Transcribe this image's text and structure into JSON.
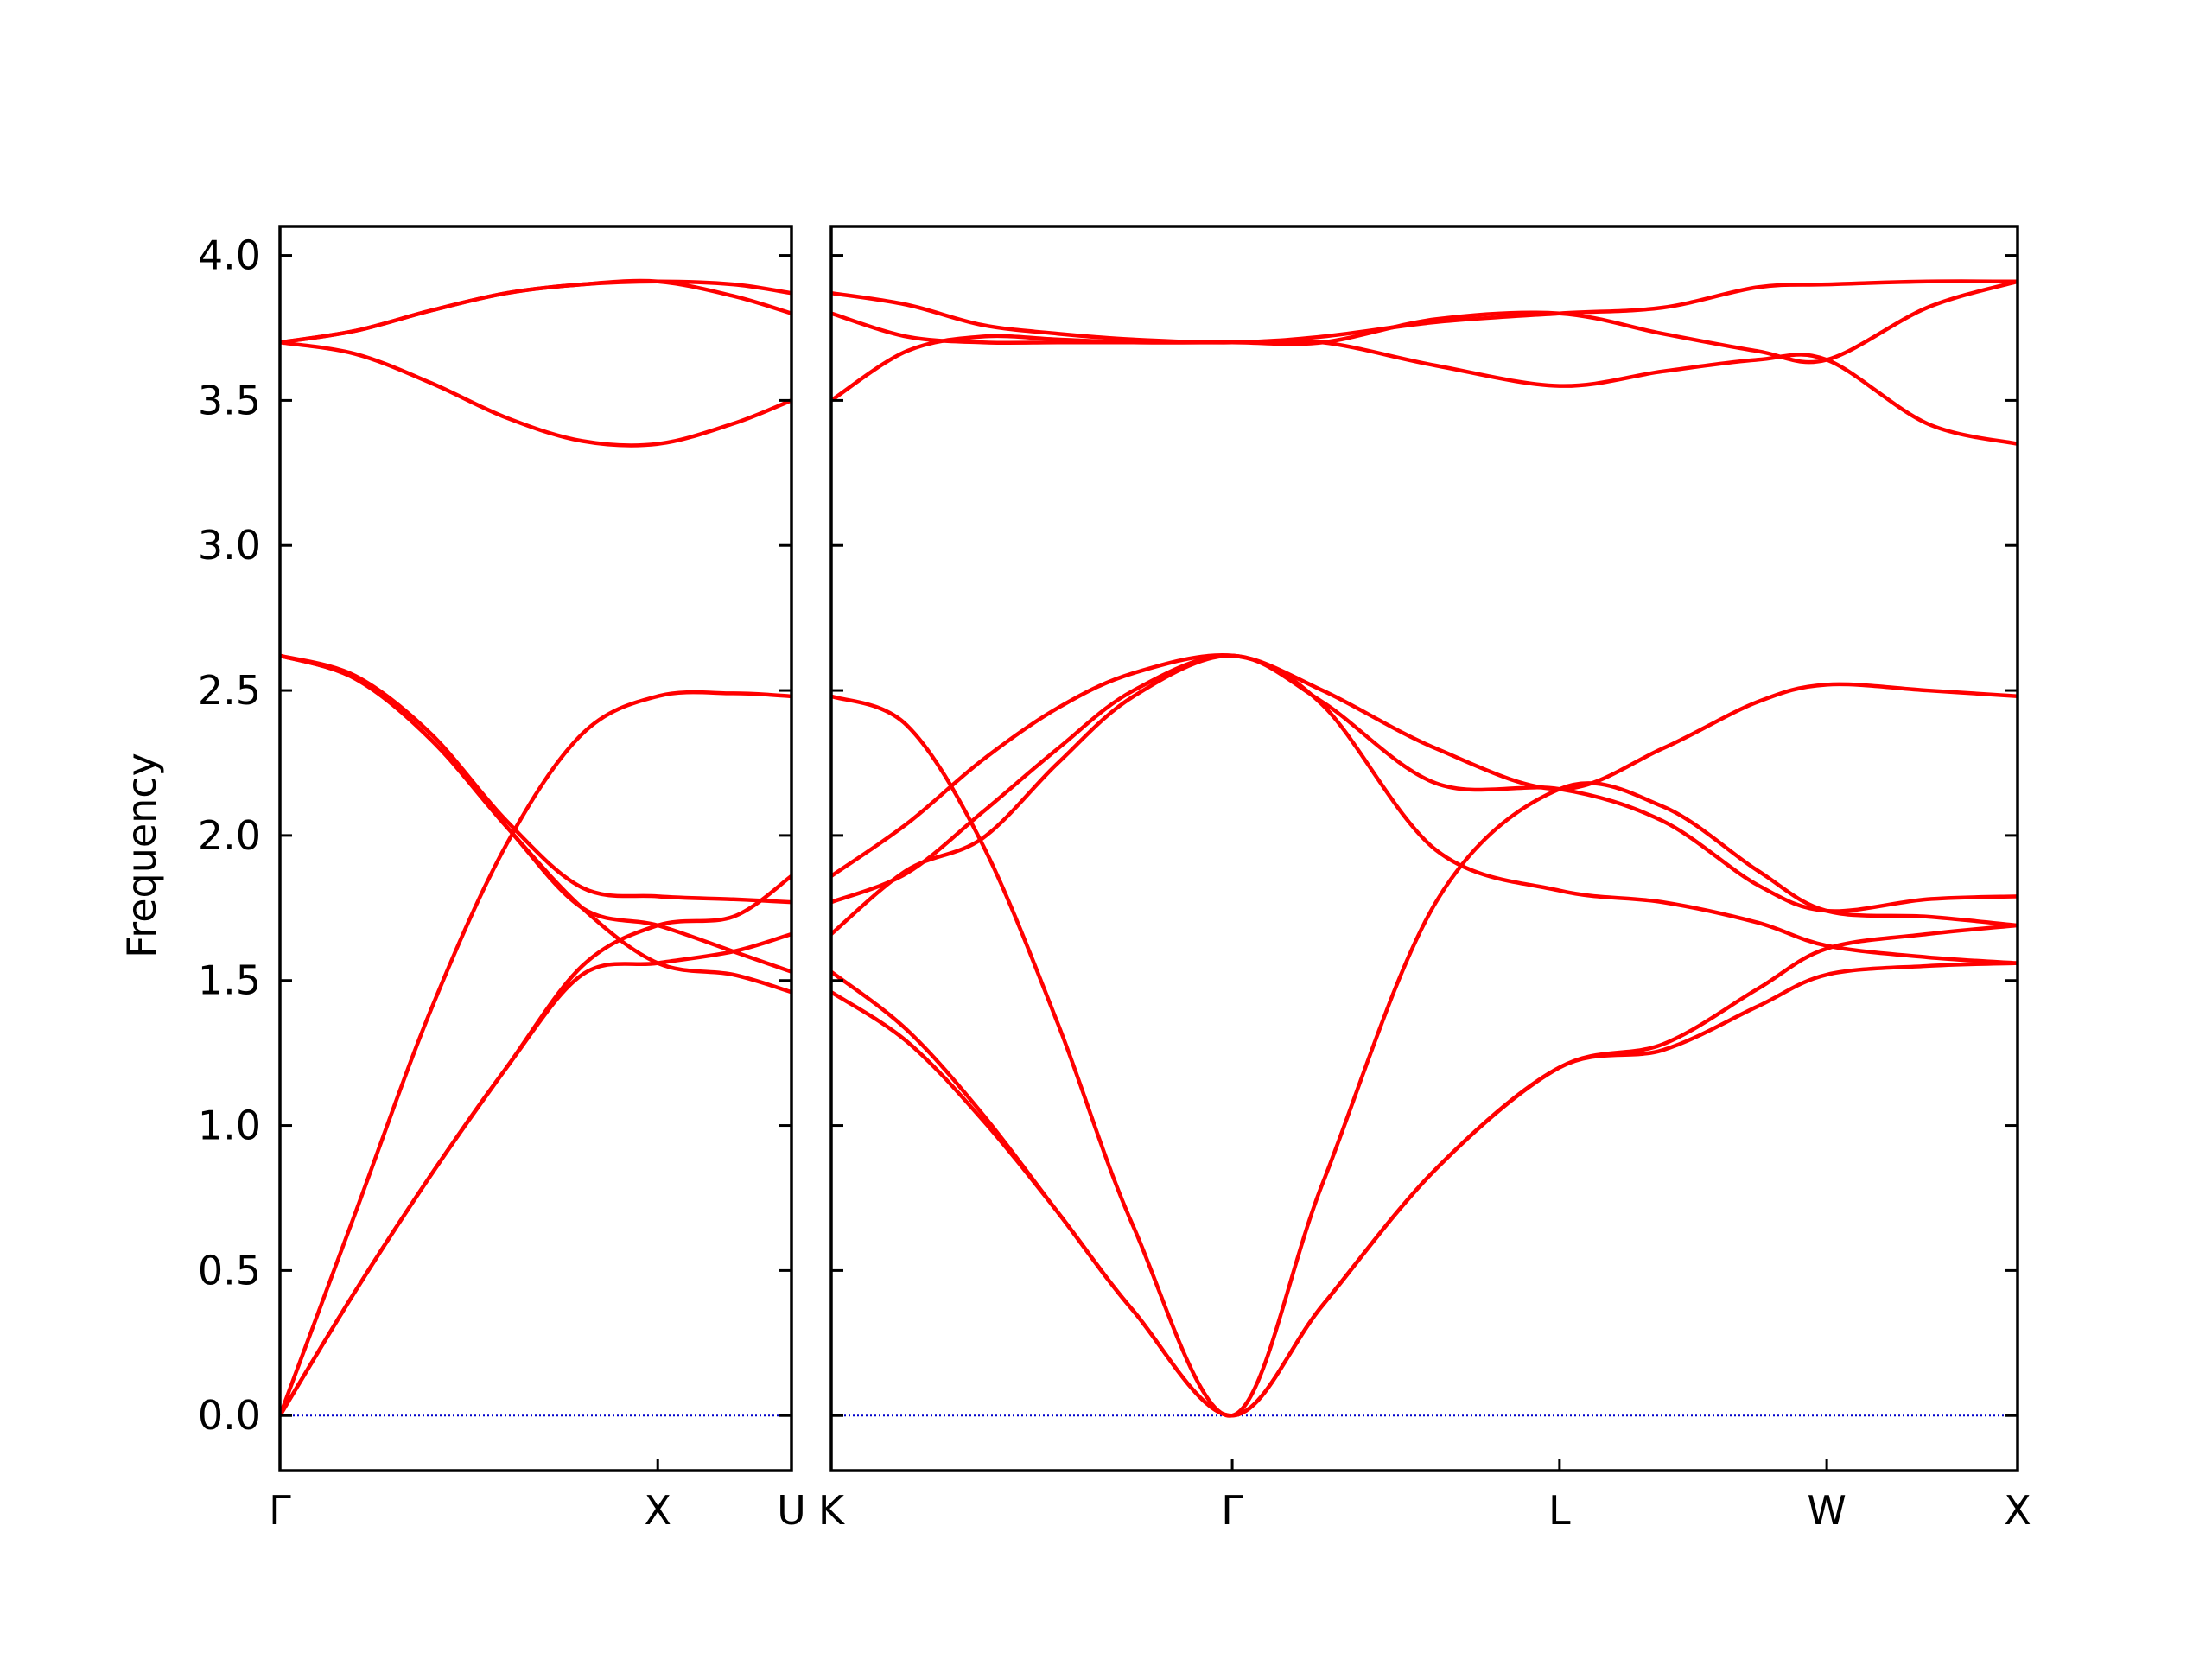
{
  "chart_data": {
    "type": "line",
    "title": "",
    "ylabel": "Frequency",
    "xlabel": "",
    "ylim": [
      -0.19,
      4.1
    ],
    "y_ticks": [
      0.0,
      0.5,
      1.0,
      1.5,
      2.0,
      2.5,
      3.0,
      3.5,
      4.0
    ],
    "y_tick_labels": [
      "0.0",
      "0.5",
      "1.0",
      "1.5",
      "2.0",
      "2.5",
      "3.0",
      "3.5",
      "4.0"
    ],
    "line_color": "#ff0000",
    "zero_line_color": "#0000cc",
    "grid": false,
    "legend": "none",
    "panels": [
      {
        "name": "Γ-X-U",
        "x_range": [
          0,
          1.354
        ],
        "x_ticks": [
          {
            "x": 0,
            "label": "Γ"
          },
          {
            "x": 1.0,
            "label": "X"
          },
          {
            "x": 1.354,
            "label": "U"
          }
        ],
        "series": [
          {
            "x": [
              0,
              0.2,
              0.4,
              0.6,
              0.8,
              1.0,
              1.2,
              1.354
            ],
            "y": [
              0.0,
              0.7,
              1.4,
              1.97,
              2.35,
              2.48,
              2.49,
              2.48
            ]
          },
          {
            "x": [
              0,
              0.2,
              0.4,
              0.6,
              0.8,
              1.0,
              1.2,
              1.354
            ],
            "y": [
              0.0,
              0.43,
              0.83,
              1.2,
              1.55,
              1.69,
              1.72,
              1.86
            ]
          },
          {
            "x": [
              0,
              0.2,
              0.4,
              0.6,
              0.8,
              1.0,
              1.2,
              1.354
            ],
            "y": [
              0.0,
              0.43,
              0.83,
              1.2,
              1.52,
              1.56,
              1.6,
              1.66
            ]
          },
          {
            "x": [
              0,
              0.2,
              0.4,
              0.6,
              0.8,
              1.0,
              1.2,
              1.354
            ],
            "y": [
              2.62,
              2.55,
              2.35,
              2.05,
              1.82,
              1.79,
              1.78,
              1.77
            ]
          },
          {
            "x": [
              0,
              0.2,
              0.4,
              0.6,
              0.8,
              1.0,
              1.2,
              1.354
            ],
            "y": [
              2.62,
              2.54,
              2.33,
              2.03,
              1.75,
              1.69,
              1.6,
              1.53
            ]
          },
          {
            "x": [
              0,
              0.2,
              0.4,
              0.6,
              0.8,
              1.0,
              1.2,
              1.354
            ],
            "y": [
              2.62,
              2.54,
              2.33,
              2.03,
              1.75,
              1.56,
              1.52,
              1.46
            ]
          },
          {
            "x": [
              0,
              0.2,
              0.4,
              0.6,
              0.8,
              1.0,
              1.2,
              1.354
            ],
            "y": [
              3.7,
              3.74,
              3.81,
              3.87,
              3.9,
              3.91,
              3.9,
              3.87
            ]
          },
          {
            "x": [
              0,
              0.2,
              0.4,
              0.6,
              0.8,
              1.0,
              1.2,
              1.354
            ],
            "y": [
              3.7,
              3.66,
              3.56,
              3.44,
              3.36,
              3.35,
              3.42,
              3.5
            ]
          },
          {
            "x": [
              0,
              0.2,
              0.4,
              0.6,
              0.8,
              1.0,
              1.2,
              1.354
            ],
            "y": [
              3.7,
              3.74,
              3.81,
              3.87,
              3.9,
              3.91,
              3.86,
              3.8
            ]
          }
        ]
      },
      {
        "name": "K-Γ-L-W-X",
        "x_range": [
          0,
          3.139
        ],
        "x_ticks": [
          {
            "x": 0,
            "label": "K"
          },
          {
            "x": 1.061,
            "label": "Γ"
          },
          {
            "x": 1.927,
            "label": "L"
          },
          {
            "x": 2.634,
            "label": "W"
          },
          {
            "x": 3.139,
            "label": "X"
          }
        ],
        "series": [
          {
            "x": [
              0,
              0.2,
              0.4,
              0.6,
              0.8,
              1.061,
              1.3,
              1.6,
              1.927,
              2.2,
              2.45,
              2.634,
              2.9,
              3.139
            ],
            "y": [
              2.48,
              2.38,
              1.97,
              1.35,
              0.65,
              0.0,
              0.8,
              1.77,
              2.16,
              2.1,
              1.88,
              1.74,
              1.72,
              1.69
            ]
          },
          {
            "x": [
              0,
              0.2,
              0.4,
              0.6,
              0.8,
              1.061,
              1.3,
              1.6,
              1.927,
              2.2,
              2.45,
              2.634,
              2.9,
              3.139
            ],
            "y": [
              1.46,
              1.29,
              1.02,
              0.7,
              0.36,
              0.0,
              0.38,
              0.85,
              1.2,
              1.26,
              1.41,
              1.52,
              1.55,
              1.56
            ]
          },
          {
            "x": [
              0,
              0.2,
              0.4,
              0.6,
              0.8,
              1.061,
              1.3,
              1.6,
              1.927,
              2.2,
              2.45,
              2.634,
              2.9,
              3.139
            ],
            "y": [
              1.53,
              1.33,
              1.04,
              0.7,
              0.36,
              0.0,
              0.38,
              0.85,
              1.2,
              1.28,
              1.47,
              1.61,
              1.66,
              1.69
            ]
          },
          {
            "x": [
              0,
              0.2,
              0.4,
              0.6,
              0.8,
              1.061,
              1.3,
              1.6,
              1.927,
              2.2,
              2.45,
              2.634,
              2.9,
              3.139
            ],
            "y": [
              1.66,
              1.88,
              1.99,
              2.25,
              2.48,
              2.62,
              2.46,
              2.18,
              2.16,
              2.05,
              1.83,
              1.74,
              1.78,
              1.79
            ]
          },
          {
            "x": [
              0,
              0.2,
              0.4,
              0.6,
              0.8,
              1.061,
              1.3,
              1.6,
              1.927,
              2.2,
              2.45,
              2.634,
              2.9,
              3.139
            ],
            "y": [
              1.77,
              1.87,
              2.08,
              2.3,
              2.5,
              2.62,
              2.45,
              1.95,
              1.81,
              1.77,
              1.7,
              1.62,
              1.58,
              1.56
            ]
          },
          {
            "x": [
              0,
              0.2,
              0.4,
              0.6,
              0.8,
              1.061,
              1.3,
              1.6,
              1.927,
              2.2,
              2.45,
              2.634,
              2.9,
              3.139
            ],
            "y": [
              1.86,
              2.04,
              2.26,
              2.44,
              2.56,
              2.62,
              2.5,
              2.3,
              2.16,
              2.3,
              2.46,
              2.52,
              2.5,
              2.48
            ]
          },
          {
            "x": [
              0,
              0.2,
              0.4,
              0.6,
              0.8,
              1.061,
              1.3,
              1.6,
              1.927,
              2.2,
              2.45,
              2.634,
              2.9,
              3.139
            ],
            "y": [
              3.5,
              3.67,
              3.72,
              3.71,
              3.7,
              3.7,
              3.7,
              3.62,
              3.55,
              3.6,
              3.64,
              3.64,
              3.42,
              3.35
            ]
          },
          {
            "x": [
              0,
              0.2,
              0.4,
              0.6,
              0.8,
              1.061,
              1.3,
              1.6,
              1.927,
              2.2,
              2.45,
              2.634,
              2.9,
              3.139
            ],
            "y": [
              3.8,
              3.72,
              3.7,
              3.7,
              3.7,
              3.7,
              3.7,
              3.78,
              3.8,
              3.73,
              3.67,
              3.64,
              3.82,
              3.91
            ]
          },
          {
            "x": [
              0,
              0.2,
              0.4,
              0.6,
              0.8,
              1.061,
              1.3,
              1.6,
              1.927,
              2.2,
              2.45,
              2.634,
              2.9,
              3.139
            ],
            "y": [
              3.87,
              3.83,
              3.76,
              3.73,
              3.71,
              3.7,
              3.72,
              3.77,
              3.8,
              3.82,
              3.89,
              3.9,
              3.91,
              3.91
            ]
          }
        ]
      }
    ]
  }
}
